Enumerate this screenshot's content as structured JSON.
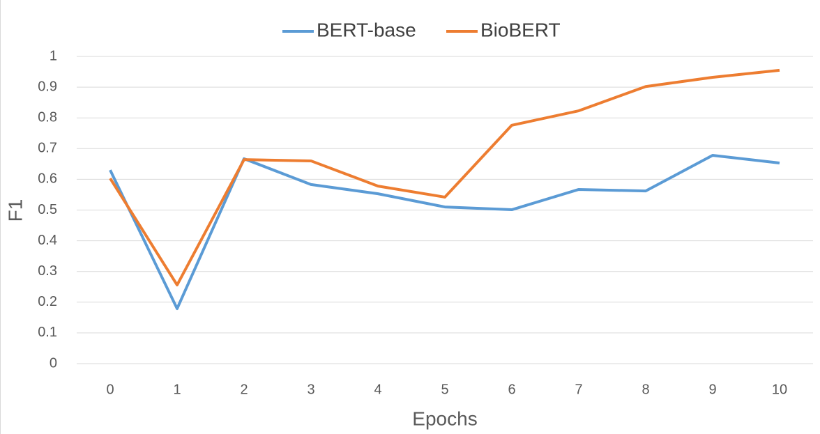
{
  "chart_data": {
    "type": "line",
    "x_label": "Epochs",
    "y_label": "F1",
    "categories": [
      "0",
      "1",
      "2",
      "3",
      "4",
      "5",
      "6",
      "7",
      "8",
      "9",
      "10"
    ],
    "series": [
      {
        "name": "BERT-base",
        "color": "#5b9bd5",
        "values": [
          0.63,
          0.179,
          0.667,
          0.583,
          0.553,
          0.51,
          0.501,
          0.567,
          0.562,
          0.678,
          0.653
        ]
      },
      {
        "name": "BioBERT",
        "color": "#ed7d31",
        "values": [
          0.603,
          0.256,
          0.664,
          0.66,
          0.578,
          0.542,
          0.776,
          0.823,
          0.902,
          0.932,
          0.955
        ]
      }
    ],
    "ylim": [
      0,
      1
    ],
    "yticks": [
      0,
      0.1,
      0.2,
      0.3,
      0.4,
      0.5,
      0.6,
      0.7,
      0.8,
      0.9,
      1
    ],
    "grid": true,
    "legend": "top"
  }
}
